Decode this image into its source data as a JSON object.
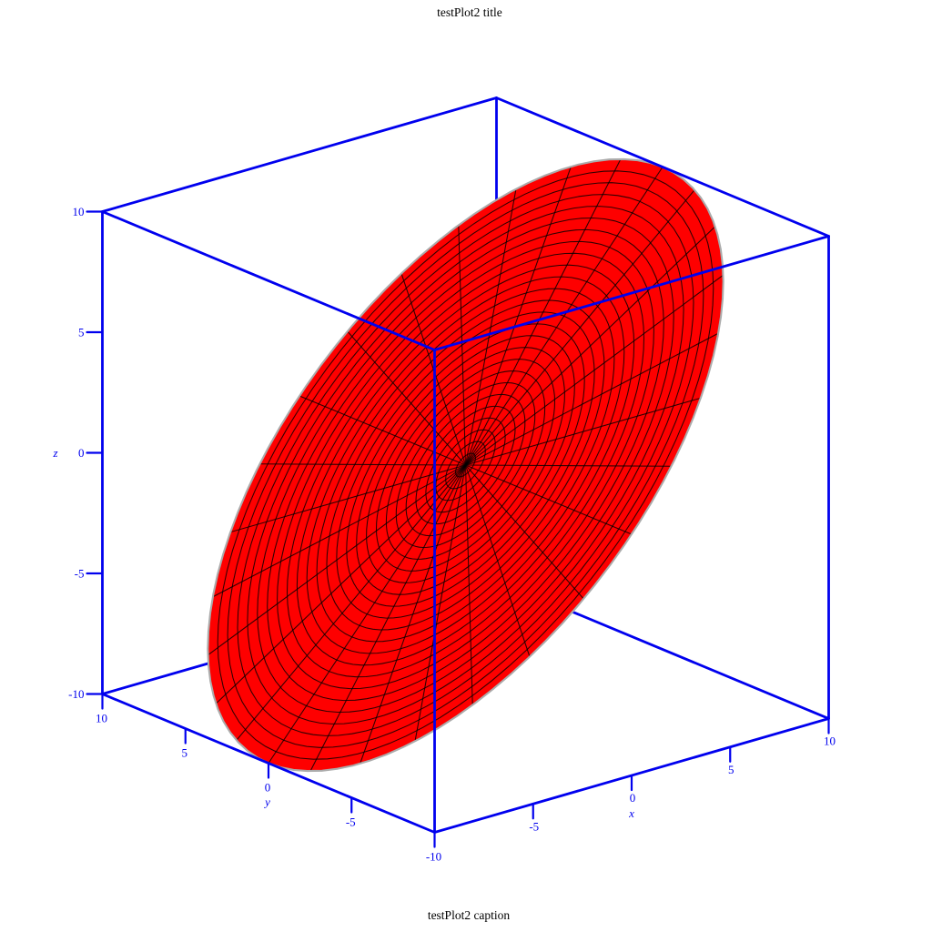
{
  "title": "testPlot2 title",
  "caption": "testPlot2 caption",
  "colors": {
    "frame": "#0000ee",
    "surface_fill": "#fe0000",
    "mesh_line": "#000000",
    "surface_edge": "#ababab",
    "text": "#000000",
    "background": "#ffffff"
  },
  "axes": {
    "x": {
      "label": "x",
      "ticks": [
        "-5",
        "0",
        "5",
        "10"
      ],
      "tick_values": [
        -5,
        0,
        5,
        10
      ],
      "range": [
        -10,
        10
      ]
    },
    "y": {
      "label": "y",
      "ticks": [
        "10",
        "5",
        "0",
        "-5",
        "-10"
      ],
      "tick_values": [
        10,
        5,
        0,
        -5,
        -10
      ],
      "range": [
        -10,
        10
      ]
    },
    "z": {
      "label": "z",
      "ticks": [
        "10",
        "5",
        "0",
        "-5",
        "-10"
      ],
      "tick_values": [
        10,
        5,
        0,
        -5,
        -10
      ],
      "range": [
        -10,
        10
      ]
    }
  },
  "chart_data": {
    "type": "3d-surface",
    "title": "testPlot2 title",
    "caption": "testPlot2 caption",
    "box": {
      "x_range": [
        -10,
        10
      ],
      "y_range": [
        -10,
        10
      ],
      "z_range": [
        -10,
        10
      ],
      "x_ticks_labeled": [
        -5,
        0,
        5,
        10
      ],
      "y_ticks_labeled": [
        10,
        5,
        0,
        -5,
        -10
      ],
      "z_ticks_labeled": [
        10,
        5,
        0,
        -5,
        -10
      ],
      "frame_color": "#0000ee",
      "grid": false,
      "legend": false
    },
    "surface": {
      "shape": "flat circular disk, tilted (high edge toward +x,+z; low edge toward -x,-z)",
      "domain": "x^2 + y^2 <= 100 (radius 10, centered at origin)",
      "relation": "z = x",
      "z_extent": [
        -10,
        10
      ],
      "fill_color": "#fe0000",
      "edge_color": "#ababab",
      "mesh": {
        "style": "polar wireframe",
        "rings": 26,
        "spokes": 28,
        "line_color": "#000000"
      }
    }
  }
}
